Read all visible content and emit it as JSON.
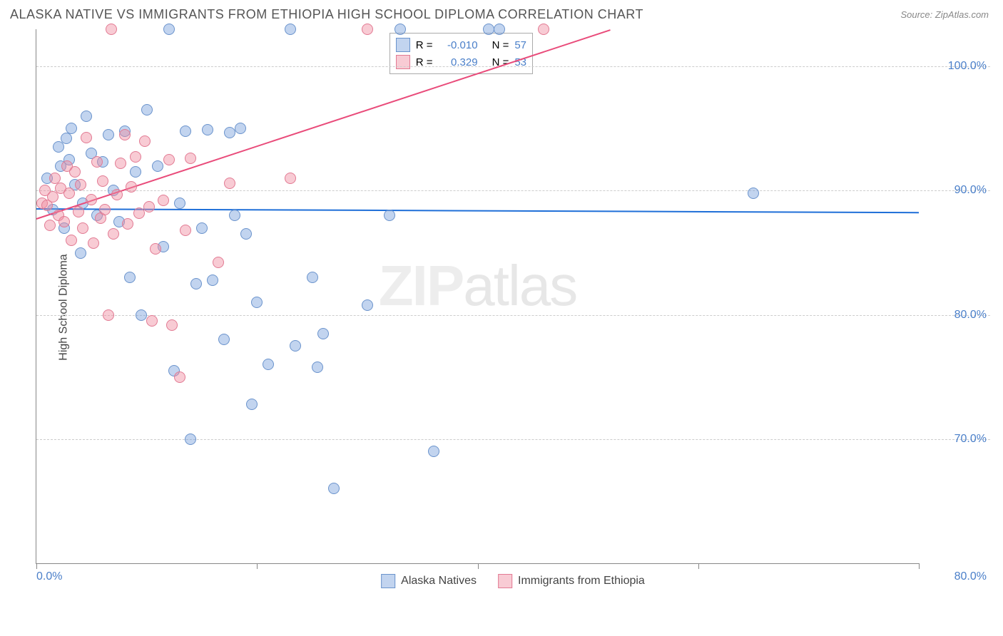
{
  "title": "ALASKA NATIVE VS IMMIGRANTS FROM ETHIOPIA HIGH SCHOOL DIPLOMA CORRELATION CHART",
  "source": "Source: ZipAtlas.com",
  "watermark": {
    "bold": "ZIP",
    "thin": "atlas"
  },
  "chart": {
    "type": "scatter",
    "ylabel": "High School Diploma",
    "xlim": [
      0,
      80
    ],
    "ylim": [
      60,
      103
    ],
    "yticks": [
      {
        "v": 70,
        "label": "70.0%"
      },
      {
        "v": 80,
        "label": "80.0%"
      },
      {
        "v": 90,
        "label": "90.0%"
      },
      {
        "v": 100,
        "label": "100.0%"
      }
    ],
    "xticks": [
      {
        "v": 0,
        "label": "0.0%"
      },
      {
        "v": 20,
        "label": ""
      },
      {
        "v": 40,
        "label": ""
      },
      {
        "v": 60,
        "label": ""
      },
      {
        "v": 80,
        "label": "80.0%"
      }
    ],
    "background_color": "#ffffff",
    "grid_color": "#cccccc",
    "series": [
      {
        "name": "Alaska Natives",
        "color_fill": "rgba(120,160,220,0.45)",
        "color_stroke": "#6a93cc",
        "trend_color": "#1f6fd8",
        "trend": {
          "x1": 0,
          "y1": 88.6,
          "x2": 80,
          "y2": 88.3
        },
        "R": "-0.010",
        "N": "57",
        "points": [
          [
            1,
            91
          ],
          [
            1.5,
            88.5
          ],
          [
            2,
            93.5
          ],
          [
            2.2,
            92
          ],
          [
            2.5,
            87
          ],
          [
            2.7,
            94.2
          ],
          [
            3,
            92.5
          ],
          [
            3.2,
            95
          ],
          [
            3.5,
            90.5
          ],
          [
            4,
            85
          ],
          [
            4.2,
            89
          ],
          [
            4.5,
            96
          ],
          [
            5,
            93
          ],
          [
            5.5,
            88
          ],
          [
            6,
            92.3
          ],
          [
            6.5,
            94.5
          ],
          [
            7,
            90
          ],
          [
            7.5,
            87.5
          ],
          [
            8,
            94.8
          ],
          [
            8.5,
            83
          ],
          [
            9,
            91.5
          ],
          [
            9.5,
            80
          ],
          [
            10,
            96.5
          ],
          [
            11,
            92
          ],
          [
            11.5,
            85.5
          ],
          [
            12,
            103
          ],
          [
            12.5,
            75.5
          ],
          [
            13,
            89
          ],
          [
            13.5,
            94.8
          ],
          [
            14,
            70
          ],
          [
            14.5,
            82.5
          ],
          [
            15,
            87
          ],
          [
            15.5,
            94.9
          ],
          [
            16,
            82.8
          ],
          [
            17,
            78
          ],
          [
            17.5,
            94.7
          ],
          [
            18,
            88
          ],
          [
            18.5,
            95
          ],
          [
            19,
            86.5
          ],
          [
            19.5,
            72.8
          ],
          [
            20,
            81
          ],
          [
            21,
            76
          ],
          [
            23,
            103
          ],
          [
            23.5,
            77.5
          ],
          [
            25,
            83
          ],
          [
            25.5,
            75.8
          ],
          [
            26,
            78.5
          ],
          [
            27,
            66
          ],
          [
            30,
            80.8
          ],
          [
            32,
            88
          ],
          [
            33,
            103
          ],
          [
            36,
            69
          ],
          [
            41,
            103
          ],
          [
            42,
            103
          ],
          [
            65,
            89.8
          ]
        ]
      },
      {
        "name": "Immigrants from Ethiopia",
        "color_fill": "rgba(240,140,160,0.45)",
        "color_stroke": "#e27a93",
        "trend_color": "#e94b7a",
        "trend": {
          "x1": 0,
          "y1": 87.8,
          "x2": 52,
          "y2": 103
        },
        "R": "0.329",
        "N": "53",
        "points": [
          [
            0.5,
            89
          ],
          [
            0.8,
            90
          ],
          [
            1,
            88.8
          ],
          [
            1.2,
            87.2
          ],
          [
            1.5,
            89.5
          ],
          [
            1.7,
            91
          ],
          [
            2,
            88
          ],
          [
            2.2,
            90.2
          ],
          [
            2.5,
            87.5
          ],
          [
            2.8,
            92
          ],
          [
            3,
            89.8
          ],
          [
            3.2,
            86
          ],
          [
            3.5,
            91.5
          ],
          [
            3.8,
            88.3
          ],
          [
            4,
            90.5
          ],
          [
            4.2,
            87
          ],
          [
            4.5,
            94.3
          ],
          [
            5,
            89.3
          ],
          [
            5.2,
            85.8
          ],
          [
            5.5,
            92.3
          ],
          [
            5.8,
            87.8
          ],
          [
            6,
            90.8
          ],
          [
            6.2,
            88.5
          ],
          [
            6.5,
            80
          ],
          [
            6.8,
            103
          ],
          [
            7,
            86.5
          ],
          [
            7.3,
            89.7
          ],
          [
            7.6,
            92.2
          ],
          [
            8,
            94.5
          ],
          [
            8.3,
            87.3
          ],
          [
            8.6,
            90.3
          ],
          [
            9,
            92.7
          ],
          [
            9.3,
            88.2
          ],
          [
            9.8,
            94
          ],
          [
            10.2,
            88.7
          ],
          [
            10.5,
            79.5
          ],
          [
            10.8,
            85.3
          ],
          [
            11.5,
            89.2
          ],
          [
            12,
            92.5
          ],
          [
            12.3,
            79.2
          ],
          [
            13,
            75
          ],
          [
            13.5,
            86.8
          ],
          [
            14,
            92.6
          ],
          [
            16.5,
            84.2
          ],
          [
            17.5,
            90.6
          ],
          [
            23,
            91
          ],
          [
            30,
            103
          ],
          [
            46,
            103
          ]
        ]
      }
    ],
    "stats_legend": {
      "r_label": "R =",
      "n_label": "N ="
    },
    "bottom_legend": [
      {
        "label": "Alaska Natives",
        "fill": "rgba(120,160,220,0.45)",
        "stroke": "#6a93cc"
      },
      {
        "label": "Immigrants from Ethiopia",
        "fill": "rgba(240,140,160,0.45)",
        "stroke": "#e27a93"
      }
    ]
  }
}
